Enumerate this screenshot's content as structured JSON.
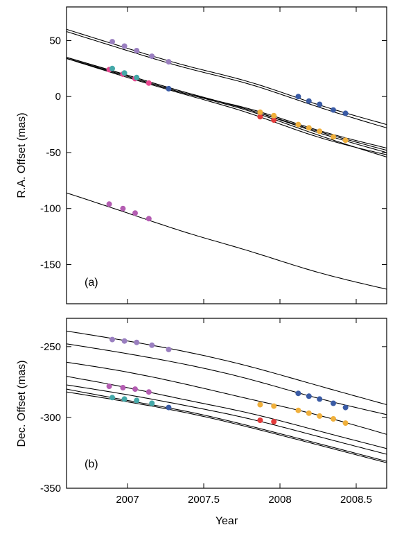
{
  "chart_data": [
    {
      "type": "line",
      "panel_label": "(a)",
      "title": "",
      "xlabel": "",
      "ylabel": "R.A. Offset (mas)",
      "xlim": [
        2006.6,
        2008.7
      ],
      "ylim": [
        -185,
        80
      ],
      "xticks": [
        2007,
        2007.5,
        2008,
        2008.5
      ],
      "xtick_labels": [
        "",
        "",
        "",
        ""
      ],
      "yticks": [
        50,
        0,
        -50,
        -100,
        -150
      ],
      "ytick_labels": [
        "50",
        "0",
        "-50",
        "-100",
        "-150"
      ],
      "grid": false,
      "series": [
        {
          "color": "#9a7fc0",
          "curve": {
            "x": [
              2006.6,
              2007.0,
              2007.4,
              2007.8,
              2008.2,
              2008.7
            ],
            "y": [
              60,
              43,
              27,
              13,
              -5,
              -25
            ]
          },
          "points": {
            "x": [
              2006.9,
              2006.98,
              2007.06,
              2007.16,
              2007.27
            ],
            "y": [
              49,
              45,
              41,
              36,
              31
            ]
          }
        },
        {
          "color": "#3a5ba5",
          "curve": {
            "x": [
              2006.6,
              2007.0,
              2007.4,
              2007.8,
              2008.2,
              2008.7
            ],
            "y": [
              58,
              41,
              25,
              11,
              -7,
              -28
            ]
          },
          "points": {
            "x": [
              2008.12,
              2008.19,
              2008.26,
              2008.35,
              2008.43
            ],
            "y": [
              0,
              -4,
              -7,
              -12,
              -15
            ]
          }
        },
        {
          "color": "#e8458f",
          "curve": {
            "x": [
              2006.6,
              2007.0,
              2007.4,
              2007.8,
              2008.2,
              2008.7
            ],
            "y": [
              35,
              19,
              3,
              -12,
              -30,
              -50
            ]
          },
          "points": {
            "x": [
              2006.88,
              2006.97,
              2007.05,
              2007.14
            ],
            "y": [
              24,
              20,
              16,
              12
            ]
          }
        },
        {
          "color": "#44a8a8",
          "curve": {
            "x": [
              2006.6,
              2007.0,
              2007.4,
              2007.8,
              2008.2,
              2008.7
            ],
            "y": [
              35,
              19,
              3,
              -12,
              -29,
              -48
            ]
          },
          "points": {
            "x": [
              2006.9,
              2006.98,
              2007.06
            ],
            "y": [
              25,
              21,
              17
            ]
          }
        },
        {
          "color": "#3a5ba5",
          "curve": {
            "x": [
              2006.6,
              2007.0,
              2007.4,
              2007.8,
              2008.2,
              2008.7
            ],
            "y": [
              34,
              18,
              2,
              -13,
              -32,
              -54
            ]
          },
          "points": {
            "x": [
              2007.27
            ],
            "y": [
              7
            ]
          }
        },
        {
          "color": "#e33b3b",
          "curve": {
            "x": [
              2006.6,
              2007.0,
              2007.4,
              2007.8,
              2008.2,
              2008.7
            ],
            "y": [
              34,
              17,
              1,
              -15,
              -34,
              -52
            ]
          },
          "points": {
            "x": [
              2007.87,
              2007.96
            ],
            "y": [
              -18,
              -21
            ]
          }
        },
        {
          "color": "#f0b03c",
          "curve": {
            "x": [
              2006.6,
              2007.0,
              2007.4,
              2007.8,
              2008.2,
              2008.7
            ],
            "y": [
              34,
              18,
              2,
              -11,
              -28,
              -46
            ]
          },
          "points": {
            "x": [
              2007.87,
              2007.96,
              2008.12,
              2008.19,
              2008.26,
              2008.35,
              2008.43
            ],
            "y": [
              -14,
              -17,
              -25,
              -28,
              -31,
              -36,
              -39
            ]
          }
        },
        {
          "color": "#b45db2",
          "curve": {
            "x": [
              2006.6,
              2007.0,
              2007.4,
              2007.8,
              2008.2,
              2008.7
            ],
            "y": [
              -86,
              -104,
              -122,
              -138,
              -155,
              -172
            ]
          },
          "points": {
            "x": [
              2006.88,
              2006.97,
              2007.05,
              2007.14
            ],
            "y": [
              -96,
              -100,
              -104,
              -109
            ]
          }
        }
      ]
    },
    {
      "type": "line",
      "panel_label": "(b)",
      "title": "",
      "xlabel": "Year",
      "ylabel": "Dec. Offset (mas)",
      "xlim": [
        2006.6,
        2008.7
      ],
      "ylim": [
        -350,
        -230
      ],
      "xticks": [
        2007,
        2007.5,
        2008,
        2008.5
      ],
      "xtick_labels": [
        "2007",
        "2007.5",
        "2008",
        "2008.5"
      ],
      "yticks": [
        -250,
        -300,
        -350
      ],
      "ytick_labels": [
        "-250",
        "-300",
        "-350"
      ],
      "grid": false,
      "series": [
        {
          "color": "#9a7fc0",
          "curve": {
            "x": [
              2006.6,
              2007.0,
              2007.4,
              2007.8,
              2008.2,
              2008.7
            ],
            "y": [
              -239,
              -246,
              -254,
              -264,
              -276,
              -291
            ]
          },
          "points": {
            "x": [
              2006.9,
              2006.98,
              2007.06,
              2007.16,
              2007.27
            ],
            "y": [
              -245,
              -246,
              -247,
              -249,
              -252
            ]
          }
        },
        {
          "color": "#3a5ba5",
          "curve": {
            "x": [
              2006.6,
              2007.0,
              2007.4,
              2007.8,
              2008.2,
              2008.7
            ],
            "y": [
              -248,
              -255,
              -263,
              -273,
              -285,
              -298
            ]
          },
          "points": {
            "x": [
              2008.12,
              2008.19,
              2008.26,
              2008.35,
              2008.43
            ],
            "y": [
              -283,
              -285,
              -287,
              -290,
              -293
            ]
          }
        },
        {
          "color": "#f0b03c",
          "curve": {
            "x": [
              2006.6,
              2007.0,
              2007.4,
              2007.8,
              2008.2,
              2008.7
            ],
            "y": [
              -261,
              -268,
              -277,
              -287,
              -297,
              -312
            ]
          },
          "points": {
            "x": [
              2007.87,
              2007.96,
              2008.12,
              2008.19,
              2008.26,
              2008.35,
              2008.43
            ],
            "y": [
              -291,
              -292,
              -295,
              -297,
              -299,
              -301,
              -304
            ]
          }
        },
        {
          "color": "#b45db2",
          "curve": {
            "x": [
              2006.6,
              2007.0,
              2007.4,
              2007.8,
              2008.2,
              2008.7
            ],
            "y": [
              -271,
              -279,
              -288,
              -297,
              -308,
              -322
            ]
          },
          "points": {
            "x": [
              2006.88,
              2006.97,
              2007.05,
              2007.14
            ],
            "y": [
              -278,
              -279,
              -280,
              -282
            ]
          }
        },
        {
          "color": "#e33b3b",
          "curve": {
            "x": [
              2006.6,
              2007.0,
              2007.4,
              2007.8,
              2008.2,
              2008.7
            ],
            "y": [
              -277,
              -284,
              -292,
              -301,
              -312,
              -326
            ]
          },
          "points": {
            "x": [
              2007.87,
              2007.96
            ],
            "y": [
              -302,
              -303
            ]
          }
        },
        {
          "color": "#44a8a8",
          "curve": {
            "x": [
              2006.6,
              2007.0,
              2007.4,
              2007.8,
              2008.2,
              2008.7
            ],
            "y": [
              -280,
              -288,
              -296,
              -306,
              -317,
              -331
            ]
          },
          "points": {
            "x": [
              2006.9,
              2006.98,
              2007.06,
              2007.16
            ],
            "y": [
              -286,
              -287,
              -288,
              -290
            ]
          }
        },
        {
          "color": "#3a5ba5",
          "curve": {
            "x": [
              2006.6,
              2007.0,
              2007.4,
              2007.8,
              2008.2,
              2008.7
            ],
            "y": [
              -282,
              -289,
              -297,
              -307,
              -318,
              -332
            ]
          },
          "points": {
            "x": [
              2007.27
            ],
            "y": [
              -293
            ]
          }
        }
      ]
    }
  ]
}
